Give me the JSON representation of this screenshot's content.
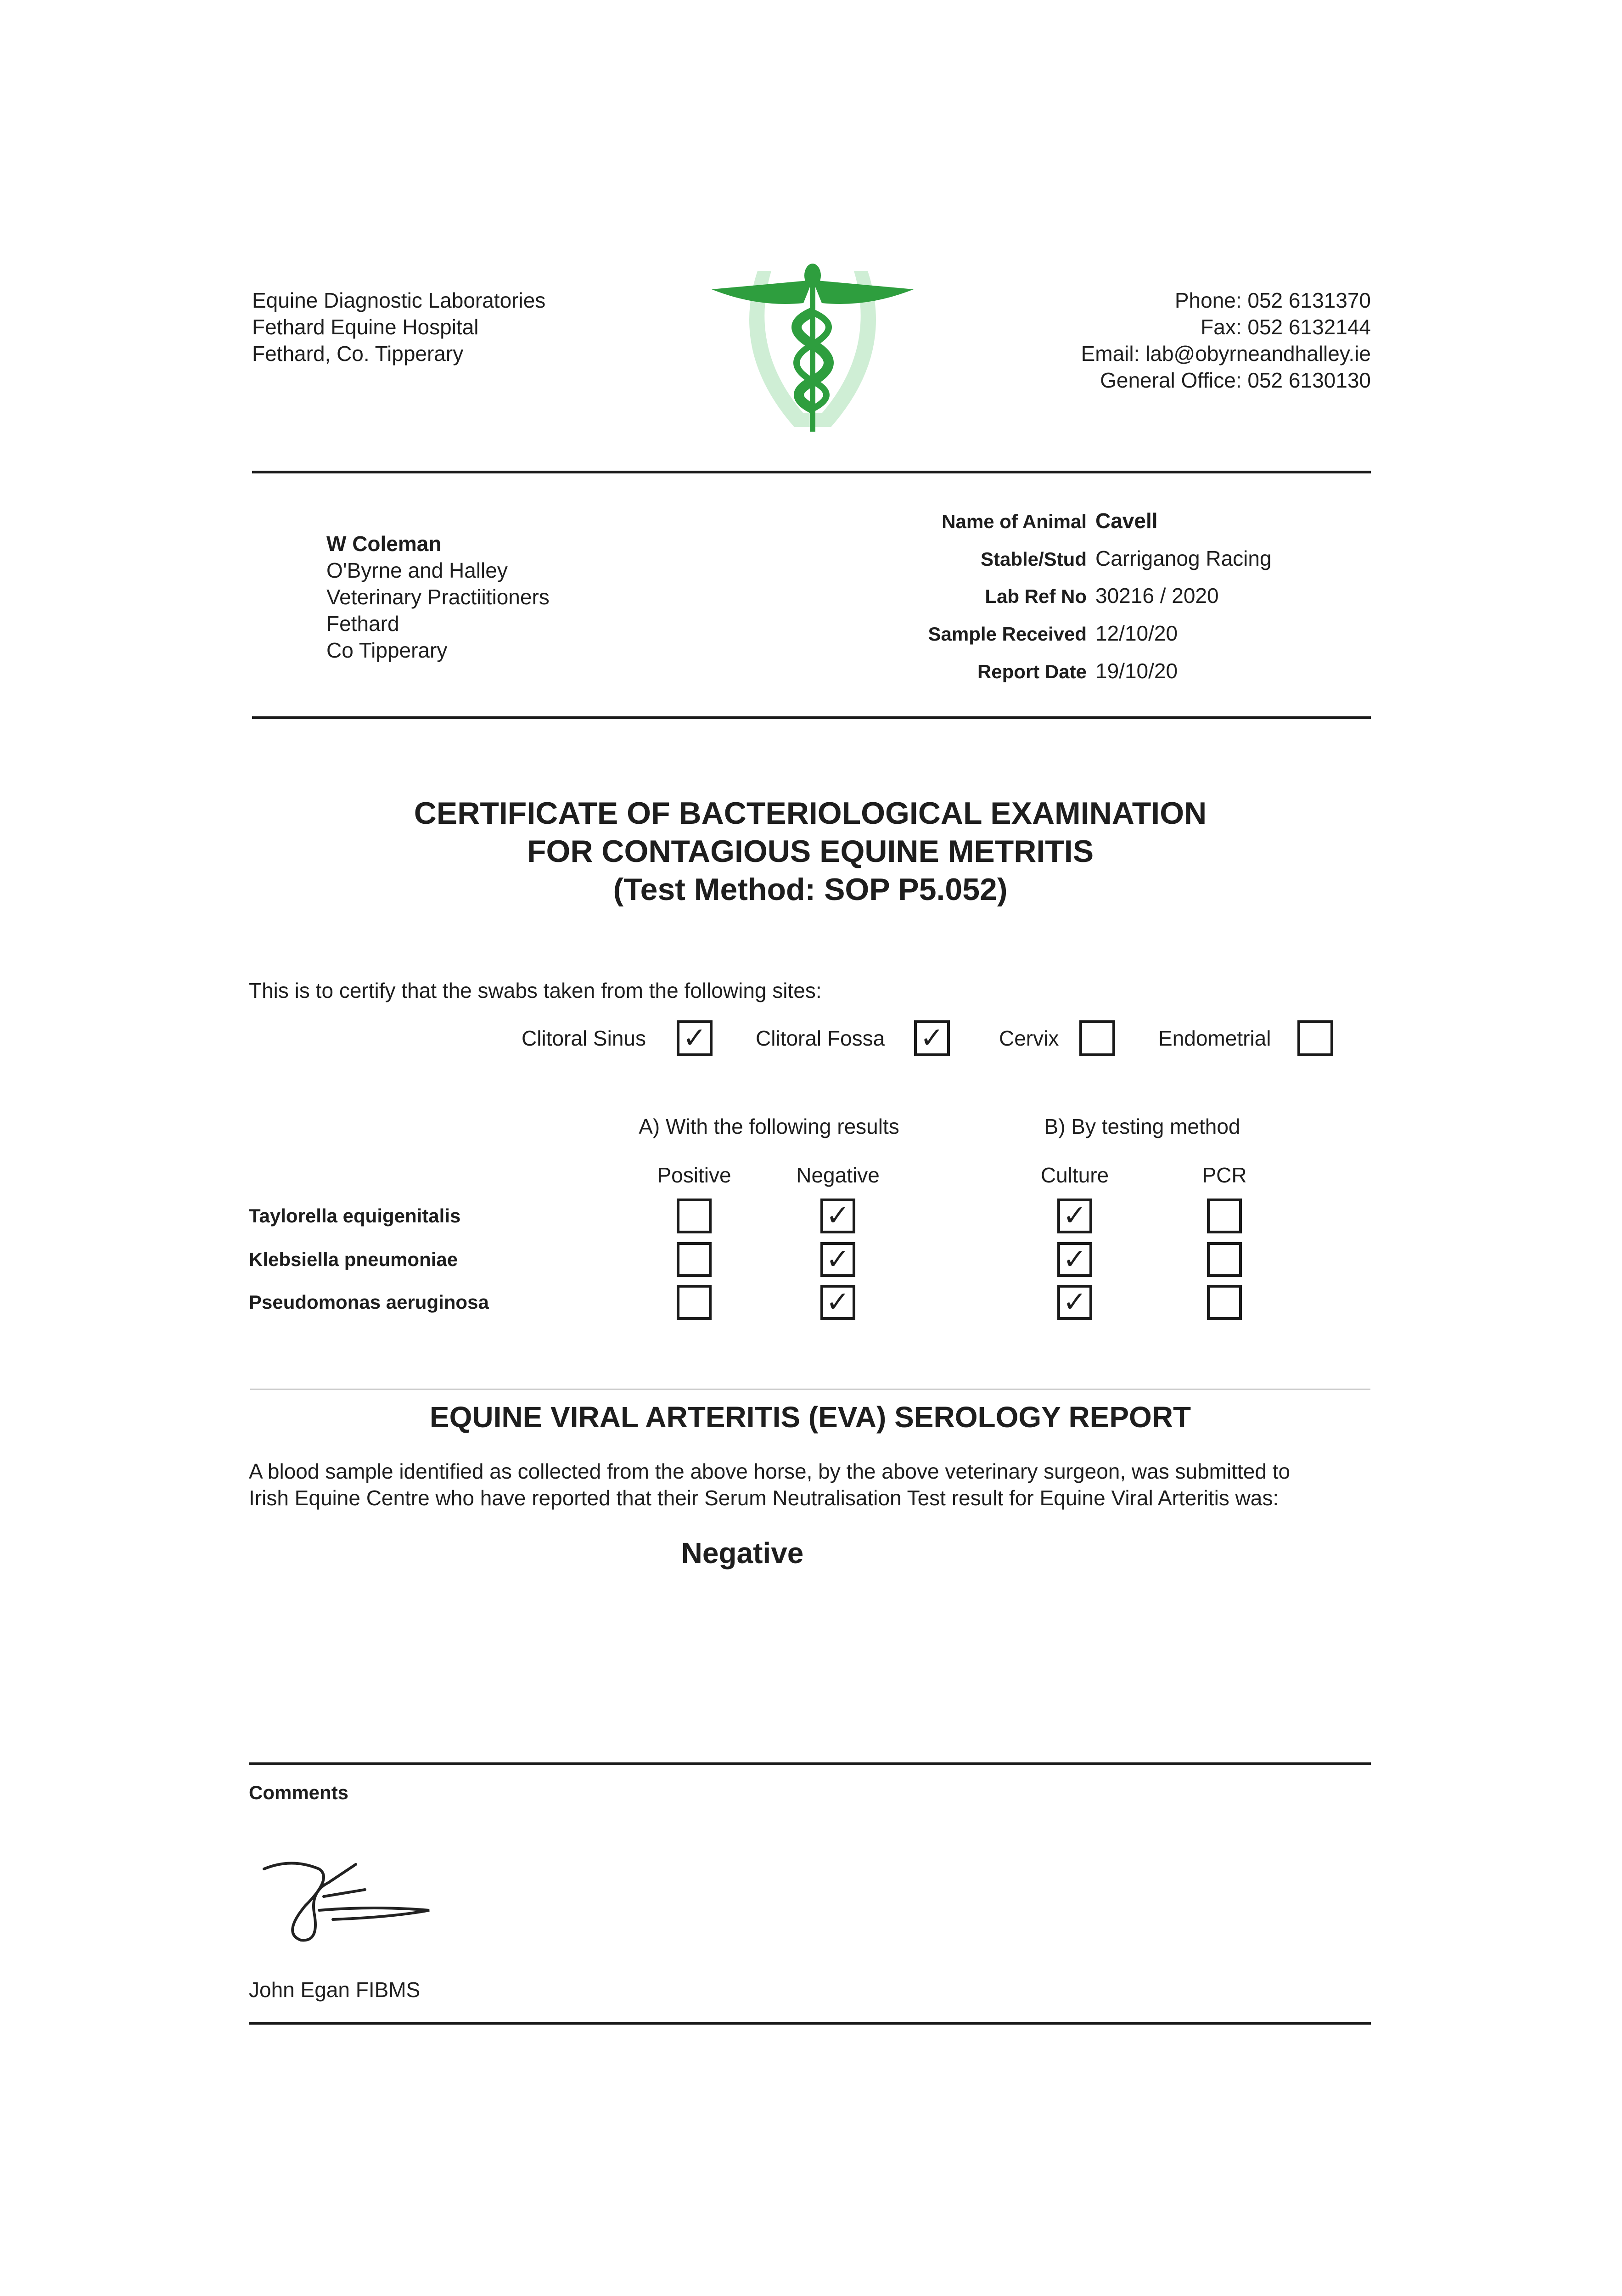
{
  "lab_address": [
    "Equine Diagnostic Laboratories",
    "Fethard Equine Hospital",
    "Fethard, Co. Tipperary"
  ],
  "contact": [
    "Phone: 052 6131370",
    "Fax: 052 6132144",
    "Email: lab@obyrneandhalley.ie",
    "General Office: 052 6130130"
  ],
  "logo": {
    "icon": "caduceus-horseshoe-logo",
    "color": "#2e9e3e"
  },
  "recipient": {
    "name": "W Coleman",
    "lines": [
      "O'Byrne and Halley",
      "Veterinary Practiitioners",
      "Fethard",
      "Co Tipperary"
    ]
  },
  "fields": [
    {
      "label": "Name of Animal",
      "value": "Cavell"
    },
    {
      "label": "Stable/Stud",
      "value": "Carriganog Racing"
    },
    {
      "label": "Lab Ref No",
      "value": "30216 / 2020"
    },
    {
      "label": "Sample Received",
      "value": "12/10/20"
    },
    {
      "label": "Report Date",
      "value": "19/10/20"
    }
  ],
  "title": [
    "CERTIFICATE OF BACTERIOLOGICAL EXAMINATION",
    "FOR CONTAGIOUS EQUINE METRITIS",
    "(Test Method: SOP P5.052)"
  ],
  "certify_text": "This is to certify that the swabs taken from the following sites:",
  "sites": [
    {
      "label": "Clitoral Sinus",
      "checked": true
    },
    {
      "label": "Clitoral Fossa",
      "checked": true
    },
    {
      "label": "Cervix",
      "checked": false
    },
    {
      "label": "Endometrial",
      "checked": false
    }
  ],
  "results": {
    "group_a": "A) With the following results",
    "group_b": "B) By testing method",
    "columns": [
      "Positive",
      "Negative",
      "Culture",
      "PCR"
    ],
    "rows": [
      {
        "organism": "Taylorella equigenitalis",
        "checks": [
          false,
          true,
          true,
          false
        ]
      },
      {
        "organism": "Klebsiella pneumoniae",
        "checks": [
          false,
          true,
          true,
          false
        ]
      },
      {
        "organism": "Pseudomonas aeruginosa",
        "checks": [
          false,
          true,
          true,
          false
        ]
      }
    ],
    "check_glyph": "✓"
  },
  "eva": {
    "title": "EQUINE VIRAL ARTERITIS (EVA) SEROLOGY REPORT",
    "paragraph": [
      "A blood sample identified as collected from the above horse, by the above veterinary surgeon, was submitted to",
      "Irish Equine Centre who have reported that their Serum Neutralisation Test result for Equine Viral Arteritis was:"
    ],
    "result": "Negative"
  },
  "comments_label": "Comments",
  "signatory": "John Egan FIBMS"
}
